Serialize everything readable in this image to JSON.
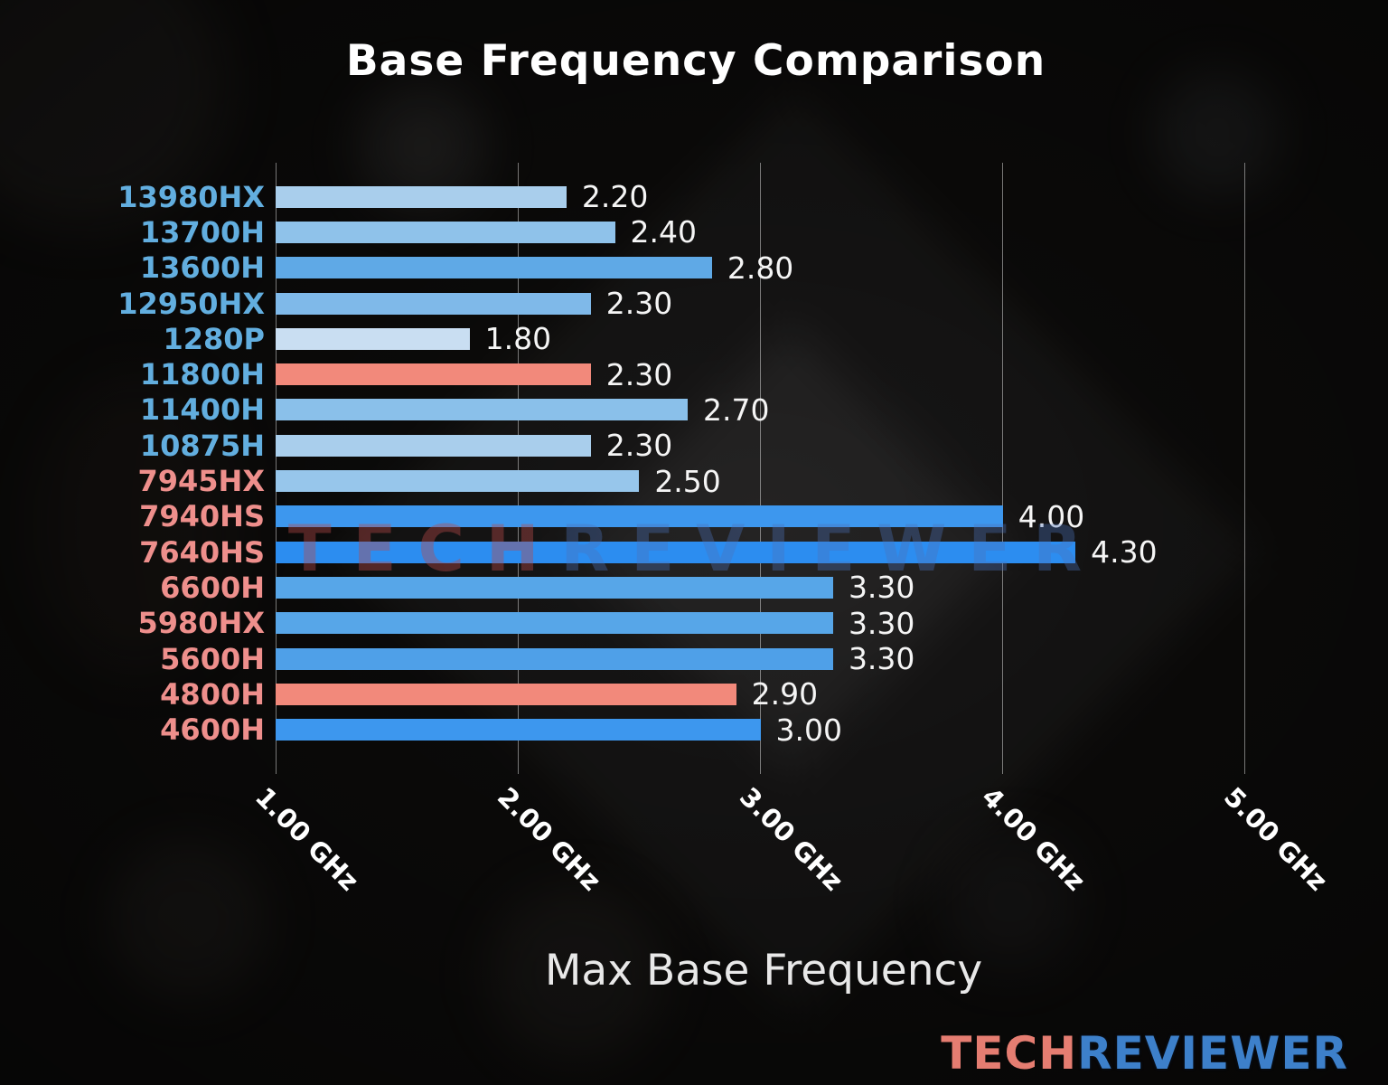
{
  "chart_data": {
    "type": "bar",
    "orientation": "horizontal",
    "title": "Base Frequency Comparison",
    "xlabel": "Max Base Frequency",
    "unit": "GHz",
    "xlim": [
      1.0,
      5.44
    ],
    "grid": true,
    "categories": [
      "13980HX",
      "13700H",
      "13600H",
      "12950HX",
      "1280P",
      "11800H",
      "11400H",
      "10875H",
      "7945HX",
      "7940HS",
      "7640HS",
      "6600H",
      "5980HX",
      "5600H",
      "4800H",
      "4600H"
    ],
    "values": [
      2.2,
      2.4,
      2.8,
      2.3,
      1.8,
      2.3,
      2.7,
      2.3,
      2.5,
      4.0,
      4.3,
      3.3,
      3.3,
      3.3,
      2.9,
      3.0
    ],
    "value_labels": [
      "2.20",
      "2.40",
      "2.80",
      "2.30",
      "1.80",
      "2.30",
      "2.70",
      "2.30",
      "2.50",
      "4.00",
      "4.30",
      "3.30",
      "3.30",
      "3.30",
      "2.90",
      "3.00"
    ],
    "category_colors": [
      "#62AEDF",
      "#62AEDF",
      "#62AEDF",
      "#62AEDF",
      "#62AEDF",
      "#62AEDF",
      "#62AEDF",
      "#62AEDF",
      "#EE8F8C",
      "#EE8F8C",
      "#EE8F8C",
      "#EE8F8C",
      "#EE8F8C",
      "#EE8F8C",
      "#EE8F8C",
      "#EE8F8C"
    ],
    "bar_colors": [
      "#A9CEEC",
      "#8FC2EA",
      "#5FA9E6",
      "#7FB9E9",
      "#C9DEF2",
      "#F2897B",
      "#8AC0EA",
      "#A9CEEC",
      "#97C6EB",
      "#3D97EE",
      "#2C8DF0",
      "#57A6E8",
      "#57A6E8",
      "#4FA0E8",
      "#F2897B",
      "#3D97EE"
    ],
    "xticks": [
      {
        "value": 1.0,
        "label": "1.00 GHz"
      },
      {
        "value": 2.0,
        "label": "2.00 GHz"
      },
      {
        "value": 3.0,
        "label": "3.00 GHz"
      },
      {
        "value": 4.0,
        "label": "4.00 GHz"
      },
      {
        "value": 5.0,
        "label": "5.00 GHz"
      }
    ]
  },
  "watermark": {
    "part1": "TECH",
    "part2": "REVIEWER"
  },
  "logo": {
    "part1": "TECH",
    "part2": "REVIEWER"
  }
}
